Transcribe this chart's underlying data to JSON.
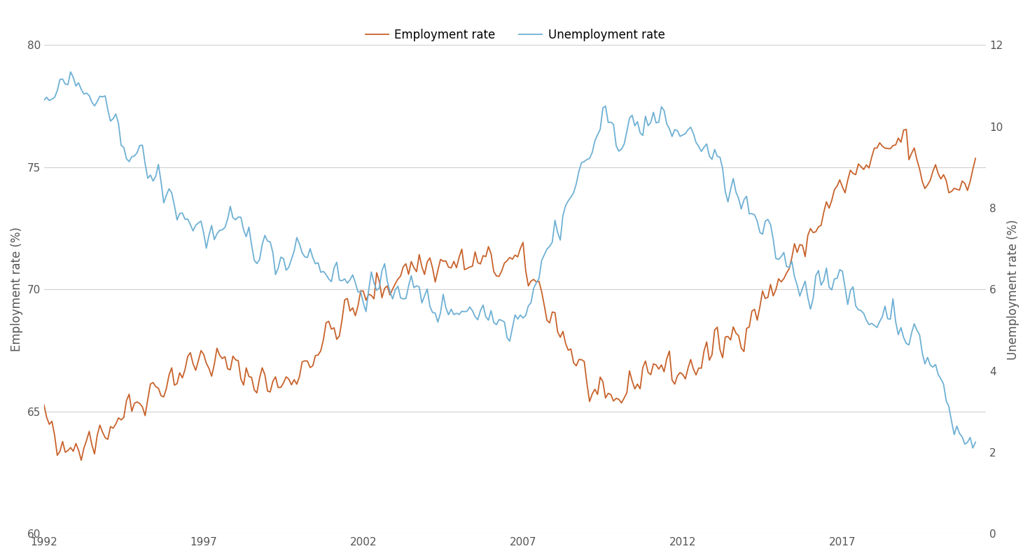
{
  "legend_entries": [
    "Employment rate",
    "Unemployment rate"
  ],
  "employment_color": "#C8622B",
  "unemployment_color": "#6EB0D4",
  "ylabel_left": "Employment rate (%)",
  "ylabel_right": "Unemployment rate (%)",
  "ylim_left": [
    60,
    80
  ],
  "ylim_right": [
    0,
    12
  ],
  "yticks_left": [
    60,
    65,
    70,
    75,
    80
  ],
  "yticks_right": [
    0,
    2,
    4,
    6,
    8,
    10,
    12
  ],
  "background_color": "#ffffff",
  "line_width": 1.3,
  "xticks": [
    1992,
    1997,
    2002,
    2007,
    2012,
    2017
  ],
  "xlim_start": 1992.0,
  "xlim_end": 2021.5
}
